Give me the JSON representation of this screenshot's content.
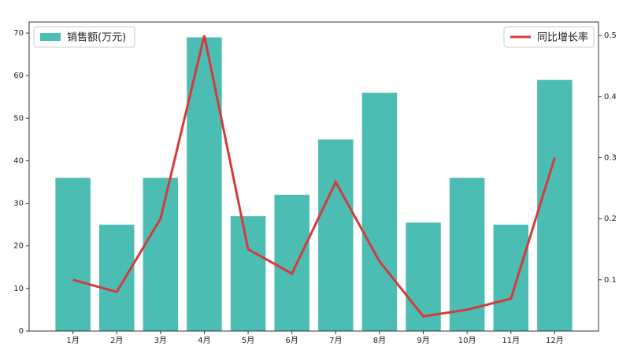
{
  "chart_data": {
    "type": "combo",
    "categories": [
      "1月",
      "2月",
      "3月",
      "4月",
      "5月",
      "6月",
      "7月",
      "8月",
      "9月",
      "10月",
      "11月",
      "12月"
    ],
    "series": [
      {
        "name": "销售额(万元)",
        "type": "bar",
        "color": "#4cbdb3",
        "values": [
          36,
          25,
          36,
          69,
          27,
          32,
          45,
          56,
          25.5,
          36,
          25,
          59
        ]
      },
      {
        "name": "同比增长率",
        "type": "line",
        "axis": "y2",
        "color": "#d43a3a",
        "values": [
          0.1,
          0.08,
          0.2,
          0.5,
          0.15,
          0.11,
          0.26,
          0.13,
          0.04,
          0.051,
          0.069,
          0.3
        ]
      }
    ],
    "ylim": [
      0,
      72.6
    ],
    "yticks": [
      0,
      10,
      20,
      30,
      40,
      50,
      60,
      70
    ],
    "y2lim": [
      0.016,
      0.522
    ],
    "y2ticks": [
      0.1,
      0.2,
      0.3,
      0.4,
      0.5
    ],
    "legend": [
      "upper left",
      "upper right"
    ]
  }
}
